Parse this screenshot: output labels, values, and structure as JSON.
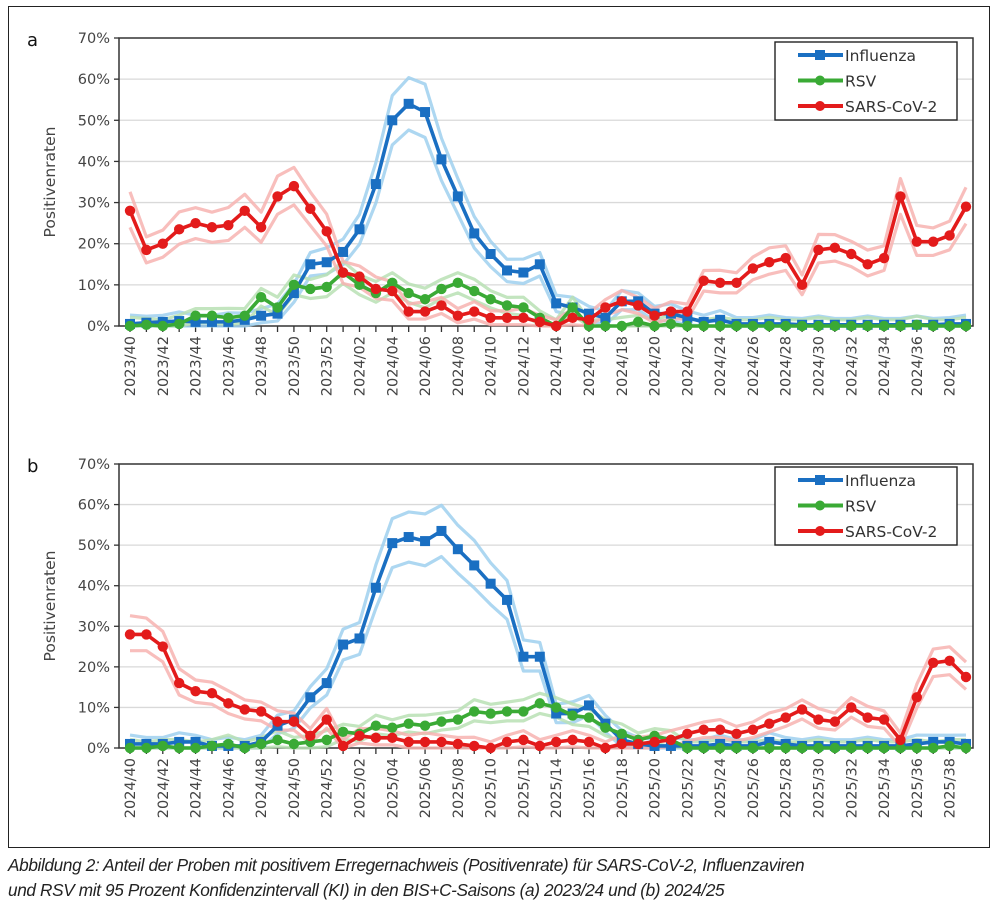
{
  "caption": {
    "line1": "Abbildung 2: Anteil der Proben mit positivem Erregernachweis (Positivenrate) für SARS-CoV-2, Influenzaviren",
    "line2": "und RSV mit 95 Prozent Konfidenzintervall (KI) in den BIS+C-Saisons (a) 2023/24 und (b) 2024/25"
  },
  "chart_data": [
    {
      "type": "line",
      "panel_label": "a",
      "ylabel": "Positivenraten",
      "ylim": [
        0,
        70
      ],
      "yticks": [
        "0%",
        "10%",
        "20%",
        "30%",
        "40%",
        "50%",
        "60%",
        "70%"
      ],
      "grid": true,
      "legend": "top-right",
      "x_start": {
        "year": 2023,
        "week": 40
      },
      "x": [
        "2023/40",
        "2023/41",
        "2023/42",
        "2023/43",
        "2023/44",
        "2023/45",
        "2023/46",
        "2023/47",
        "2023/48",
        "2023/49",
        "2023/50",
        "2023/51",
        "2023/52",
        "2024/01",
        "2024/02",
        "2024/03",
        "2024/04",
        "2024/05",
        "2024/06",
        "2024/07",
        "2024/08",
        "2024/09",
        "2024/10",
        "2024/11",
        "2024/12",
        "2024/13",
        "2024/14",
        "2024/15",
        "2024/16",
        "2024/17",
        "2024/18",
        "2024/19",
        "2024/20",
        "2024/21",
        "2024/22",
        "2024/23",
        "2024/24",
        "2024/25",
        "2024/26",
        "2024/27",
        "2024/28",
        "2024/29",
        "2024/30",
        "2024/31",
        "2024/32",
        "2024/33",
        "2024/34",
        "2024/35",
        "2024/36",
        "2024/37",
        "2024/38",
        "2024/39"
      ],
      "xtick_labels": [
        "2023/40",
        "2023/42",
        "2023/44",
        "2023/46",
        "2023/48",
        "2023/50",
        "2023/52",
        "2024/02",
        "2024/04",
        "2024/06",
        "2024/08",
        "2024/10",
        "2024/12",
        "2024/14",
        "2024/16",
        "2024/18",
        "2024/20",
        "2024/22",
        "2024/24",
        "2024/26",
        "2024/28",
        "2024/30",
        "2024/32",
        "2024/34",
        "2024/36",
        "2024/38"
      ],
      "series": [
        {
          "name": "Influenza",
          "color": "#1a6fc2",
          "band_color": "#9fd0ef",
          "marker": "square",
          "values": [
            0.5,
            0.8,
            1,
            1.2,
            1,
            1,
            1,
            1.5,
            2.5,
            3,
            8,
            15,
            15.5,
            18,
            23.5,
            34.5,
            50,
            54,
            52,
            40.5,
            31.5,
            22.5,
            17.5,
            13.5,
            13,
            15,
            5.5,
            4.5,
            3,
            2,
            6,
            6,
            3,
            3,
            2,
            1,
            1.5,
            0.5,
            0.5,
            0.5,
            0.5,
            0.3,
            0.3,
            0.3,
            0.3,
            0.3,
            0.3,
            0.3,
            0.3,
            0.3,
            0.5,
            0.5
          ]
        },
        {
          "name": "RSV",
          "color": "#3aaa35",
          "band_color": "#b9e0b4",
          "marker": "circle",
          "values": [
            0,
            0.3,
            0,
            0.5,
            2.5,
            2.5,
            2,
            2.5,
            7,
            4.5,
            10,
            9,
            9.5,
            13,
            10,
            8,
            10.5,
            8,
            6.5,
            9,
            10.5,
            8.5,
            6.5,
            5,
            4.5,
            2,
            0,
            4.5,
            0,
            0,
            0,
            1,
            0,
            0.5,
            0,
            0,
            0,
            0,
            0,
            0,
            0,
            0,
            0,
            0,
            0,
            0,
            0,
            0,
            0.3,
            0,
            0,
            0
          ]
        },
        {
          "name": "SARS-CoV-2",
          "color": "#e31b1b",
          "band_color": "#f7b3b0",
          "marker": "circle",
          "values": [
            28,
            18.5,
            20,
            23.5,
            25,
            24,
            24.5,
            28,
            24,
            31.5,
            34,
            28.5,
            23,
            13,
            12,
            9,
            8.5,
            3.5,
            3.5,
            5,
            2.5,
            3.5,
            2,
            2,
            2,
            1,
            0,
            2,
            1.5,
            4.5,
            6,
            5,
            2.5,
            3.5,
            3.5,
            11,
            10.5,
            10.5,
            14,
            15.5,
            16.5,
            10,
            18.5,
            19,
            17.5,
            15,
            16.5,
            31.5,
            20.5,
            20.5,
            22,
            29
          ]
        }
      ]
    },
    {
      "type": "line",
      "panel_label": "b",
      "ylabel": "Positivenraten",
      "ylim": [
        0,
        70
      ],
      "yticks": [
        "0%",
        "10%",
        "20%",
        "30%",
        "40%",
        "50%",
        "60%",
        "70%"
      ],
      "grid": true,
      "legend": "top-right",
      "x": [
        "2024/40",
        "2024/41",
        "2024/42",
        "2024/43",
        "2024/44",
        "2024/45",
        "2024/46",
        "2024/47",
        "2024/48",
        "2024/49",
        "2024/50",
        "2024/51",
        "2024/52",
        "2025/01",
        "2025/02",
        "2025/03",
        "2025/04",
        "2025/05",
        "2025/06",
        "2025/07",
        "2025/08",
        "2025/09",
        "2025/10",
        "2025/11",
        "2025/12",
        "2025/13",
        "2025/14",
        "2025/15",
        "2025/16",
        "2025/17",
        "2025/18",
        "2025/19",
        "2025/20",
        "2025/21",
        "2025/22",
        "2025/23",
        "2025/24",
        "2025/25",
        "2025/26",
        "2025/27",
        "2025/28",
        "2025/29",
        "2025/30",
        "2025/31",
        "2025/32",
        "2025/33",
        "2025/34",
        "2025/35",
        "2025/36",
        "2025/37",
        "2025/38",
        "2025/39"
      ],
      "xtick_labels": [
        "2024/40",
        "2024/42",
        "2024/44",
        "2024/46",
        "2024/48",
        "2024/50",
        "2024/52",
        "2025/02",
        "2025/04",
        "2025/06",
        "2025/08",
        "2025/10",
        "2025/12",
        "2025/14",
        "2025/16",
        "2025/18",
        "2025/20",
        "2025/22",
        "2025/24",
        "2025/26",
        "2025/28",
        "2025/30",
        "2025/32",
        "2025/34",
        "2025/36",
        "2025/38"
      ],
      "series": [
        {
          "name": "Influenza",
          "color": "#1a6fc2",
          "band_color": "#9fd0ef",
          "marker": "square",
          "values": [
            1,
            1,
            1,
            1.5,
            1.5,
            0.5,
            0.5,
            0.5,
            1.5,
            5.5,
            7,
            12.5,
            16,
            25.5,
            27,
            39.5,
            50.5,
            52,
            51,
            53.5,
            49,
            45,
            40.5,
            36.5,
            22.5,
            22.5,
            8.5,
            8.5,
            10.5,
            6,
            2,
            1,
            0.5,
            0.5,
            0.5,
            0.5,
            1,
            0.5,
            0.5,
            1.5,
            1,
            0.5,
            0.5,
            0.5,
            0.5,
            0.5,
            0.5,
            0.5,
            1,
            1.5,
            1.5,
            1
          ]
        },
        {
          "name": "RSV",
          "color": "#3aaa35",
          "band_color": "#b9e0b4",
          "marker": "circle",
          "values": [
            0,
            0,
            0.5,
            0,
            0,
            0.5,
            1,
            0,
            1,
            2,
            1,
            1.5,
            2,
            4,
            3.5,
            5.5,
            5,
            6,
            5.5,
            6.5,
            7,
            9,
            8.5,
            9,
            9,
            11,
            10,
            8,
            7.5,
            5,
            3.5,
            2,
            3,
            2,
            0,
            0,
            0,
            0,
            0,
            0,
            0,
            0,
            0,
            0,
            0,
            0,
            0,
            0,
            0,
            0,
            0.5,
            0
          ]
        },
        {
          "name": "SARS-CoV-2",
          "color": "#e31b1b",
          "band_color": "#f7b3b0",
          "marker": "circle",
          "values": [
            28,
            28,
            25,
            16,
            14,
            13.5,
            11,
            9.5,
            9,
            6.5,
            6.5,
            3,
            7,
            0.5,
            3,
            2.5,
            2.5,
            1.5,
            1.5,
            1.5,
            1,
            0.5,
            0,
            1.5,
            2,
            0.5,
            1.5,
            2,
            1.5,
            0,
            1,
            1,
            1.5,
            2,
            3.5,
            4.5,
            4.5,
            3.5,
            4.5,
            6,
            7.5,
            9.5,
            7,
            6.5,
            10,
            7.5,
            7,
            2,
            12.5,
            21,
            21.5,
            17.5
          ]
        }
      ]
    }
  ]
}
